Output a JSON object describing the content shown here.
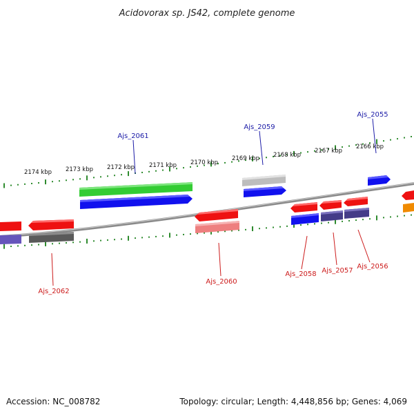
{
  "title": "Acidovorax sp. JS42, complete genome",
  "footer": {
    "accession": "Accession: NC_008782",
    "summary": "Topology: circular; Length: 4,448,856 bp; Genes: 4,069"
  },
  "ticks": [
    "2174 kbp",
    "2173 kbp",
    "2172 kbp",
    "2171 kbp",
    "2170 kbp",
    "2169 kbp",
    "2168 kbp",
    "2167 kbp",
    "2166 kbp"
  ],
  "colors": {
    "backbone": "#888888",
    "dots": "#2e8b2e",
    "label_forward": "#1a1aa6",
    "label_reverse": "#cc1a1a",
    "red": "#ee1111",
    "blue": "#1111ee",
    "green": "#33cc33",
    "gray_light": "#bdbdbd",
    "gray_dark": "#5a5a5a",
    "pink": "#ee7f7f",
    "purple": "#6655bb",
    "navy": "#443c88",
    "orange": "#f08a00"
  },
  "gene_labels": [
    {
      "name": "Ajs_2061",
      "strand": "forward"
    },
    {
      "name": "Ajs_2059",
      "strand": "forward"
    },
    {
      "name": "Ajs_2055",
      "strand": "forward"
    },
    {
      "name": "Ajs_2062",
      "strand": "reverse"
    },
    {
      "name": "Ajs_2060",
      "strand": "reverse"
    },
    {
      "name": "Ajs_2058",
      "strand": "reverse"
    },
    {
      "name": "Ajs_2057",
      "strand": "reverse"
    },
    {
      "name": "Ajs_2056",
      "strand": "reverse"
    }
  ]
}
